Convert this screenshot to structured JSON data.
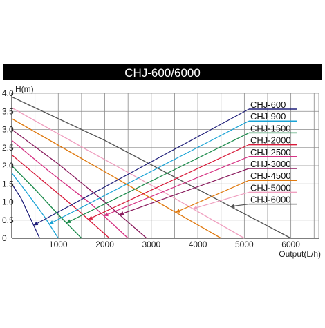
{
  "chart_data": {
    "type": "line",
    "title": "CHJ-600/6000",
    "ylabel": "H(m)",
    "xlabel": "Output(L/h)",
    "xlim": [
      0,
      6600
    ],
    "ylim": [
      0,
      4.0
    ],
    "x_ticks": [
      "1000",
      "2000",
      "3000",
      "4000",
      "5000",
      "6000"
    ],
    "y_ticks": [
      "0",
      "0.5",
      "1.0",
      "1.5",
      "2.0",
      "2.5",
      "3.0",
      "3.5",
      "4.0"
    ],
    "grid": true,
    "legend_placement": "top-right",
    "series": [
      {
        "name": "CHJ-600",
        "color": "#1f1f7a",
        "x": [
          0,
          200,
          400,
          600
        ],
        "y": [
          1.5,
          1.1,
          0.55,
          0
        ]
      },
      {
        "name": "CHJ-900",
        "color": "#1aa3d6",
        "x": [
          0,
          300,
          700,
          1000
        ],
        "y": [
          1.8,
          1.3,
          0.6,
          0
        ]
      },
      {
        "name": "CHJ-1500",
        "color": "#1a8a4a",
        "x": [
          0,
          500,
          1000,
          1500
        ],
        "y": [
          2.0,
          1.35,
          0.65,
          0
        ]
      },
      {
        "name": "CHJ-2000",
        "color": "#d81b3a",
        "x": [
          0,
          700,
          1400,
          2100
        ],
        "y": [
          2.3,
          1.55,
          0.8,
          0
        ]
      },
      {
        "name": "CHJ-2500",
        "color": "#d63384",
        "x": [
          0,
          800,
          1700,
          2500
        ],
        "y": [
          2.7,
          1.85,
          0.95,
          0
        ]
      },
      {
        "name": "CHJ-3000",
        "color": "#8a1c5e",
        "x": [
          0,
          1000,
          2000,
          2900
        ],
        "y": [
          3.0,
          2.05,
          1.0,
          0
        ]
      },
      {
        "name": "CHJ-4500",
        "color": "#e07a10",
        "x": [
          0,
          1500,
          3000,
          4500
        ],
        "y": [
          3.3,
          2.2,
          1.1,
          0
        ]
      },
      {
        "name": "CHJ-5000",
        "color": "#f0a0c0",
        "x": [
          0,
          1600,
          3300,
          5000
        ],
        "y": [
          3.6,
          2.45,
          1.25,
          0
        ]
      },
      {
        "name": "CHJ-6000",
        "color": "#555555",
        "x": [
          0,
          2000,
          4000,
          6000
        ],
        "y": [
          3.9,
          2.7,
          1.35,
          0
        ]
      }
    ]
  }
}
